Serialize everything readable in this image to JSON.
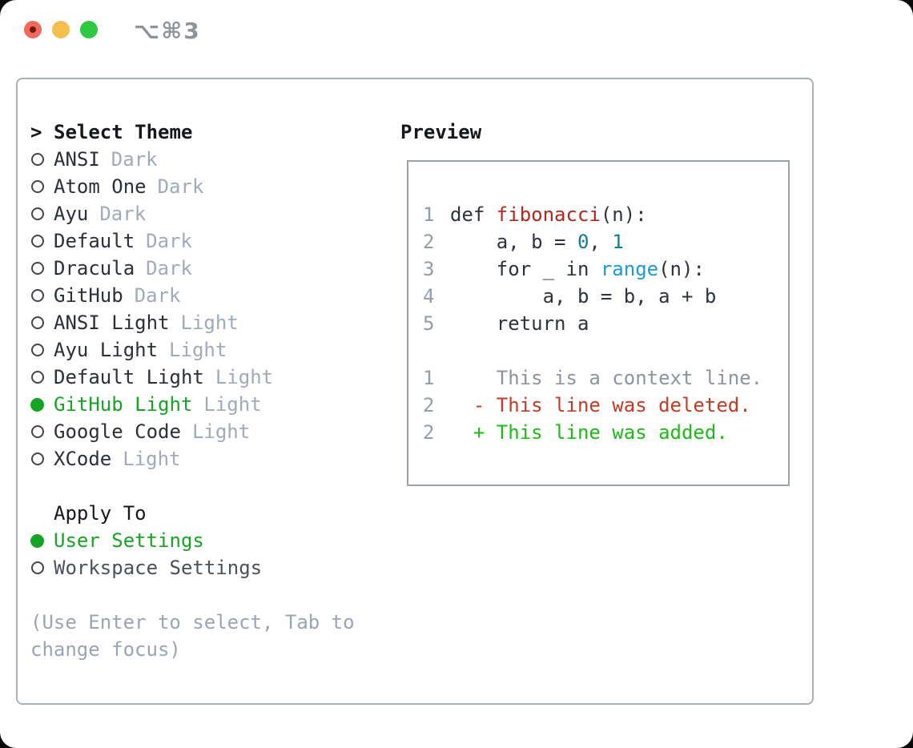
{
  "window": {
    "title": "⌥⌘3",
    "traffic_lights": [
      "close",
      "minimize",
      "zoom"
    ]
  },
  "theme_picker": {
    "heading_prefix": ">",
    "heading": "Select Theme",
    "items": [
      {
        "label": "ANSI",
        "variant": "Dark",
        "selected": false
      },
      {
        "label": "Atom One",
        "variant": "Dark",
        "selected": false
      },
      {
        "label": "Ayu",
        "variant": "Dark",
        "selected": false
      },
      {
        "label": "Default",
        "variant": "Dark",
        "selected": false
      },
      {
        "label": "Dracula",
        "variant": "Dark",
        "selected": false
      },
      {
        "label": "GitHub",
        "variant": "Dark",
        "selected": false
      },
      {
        "label": "ANSI Light",
        "variant": "Light",
        "selected": false
      },
      {
        "label": "Ayu Light",
        "variant": "Light",
        "selected": false
      },
      {
        "label": "Default Light",
        "variant": "Light",
        "selected": false
      },
      {
        "label": "GitHub Light",
        "variant": "Light",
        "selected": true
      },
      {
        "label": "Google Code",
        "variant": "Light",
        "selected": false
      },
      {
        "label": "XCode",
        "variant": "Light",
        "selected": false
      }
    ],
    "apply_to": {
      "heading": "Apply To",
      "options": [
        {
          "label": "User Settings",
          "selected": true
        },
        {
          "label": "Workspace Settings",
          "selected": false
        }
      ]
    },
    "hint_lines": [
      "(Use Enter to select, Tab to",
      "change focus)"
    ]
  },
  "preview": {
    "heading": "Preview",
    "code_lines": [
      {
        "num": "1",
        "segments": [
          {
            "t": "def ",
            "c": "code"
          },
          {
            "t": "fibonacci",
            "c": "funcdef"
          },
          {
            "t": "(n):",
            "c": "code"
          }
        ]
      },
      {
        "num": "2",
        "segments": [
          {
            "t": "    a, b = ",
            "c": "code"
          },
          {
            "t": "0",
            "c": "number"
          },
          {
            "t": ", ",
            "c": "code"
          },
          {
            "t": "1",
            "c": "number"
          }
        ]
      },
      {
        "num": "3",
        "segments": [
          {
            "t": "    for _ in ",
            "c": "code"
          },
          {
            "t": "range",
            "c": "call"
          },
          {
            "t": "(n):",
            "c": "code"
          }
        ]
      },
      {
        "num": "4",
        "segments": [
          {
            "t": "        a, b = b, a + b",
            "c": "code"
          }
        ]
      },
      {
        "num": "5",
        "segments": [
          {
            "t": "    return a",
            "c": "code"
          }
        ]
      },
      {
        "num": "",
        "segments": []
      },
      {
        "num": "1",
        "segments": [
          {
            "t": "    This is a context line.",
            "c": "ctx"
          }
        ]
      },
      {
        "num": "2",
        "segments": [
          {
            "t": "  - This line was deleted.",
            "c": "del"
          }
        ]
      },
      {
        "num": "2",
        "segments": [
          {
            "t": "  + This line was added.",
            "c": "add"
          }
        ]
      }
    ]
  },
  "colors": {
    "green": "#17a325",
    "add_green": "#1cbb17",
    "del_red": "#c43a24",
    "func_red": "#b3271d",
    "num_teal": "#0f7e8a",
    "call_blue": "#1b9ad2",
    "code_dark": "#2d333d",
    "context_gray": "#8d949e",
    "linenum": "#929dac",
    "heading": "#14171c",
    "item_dark": "#2a2f38",
    "suffix_gray": "#a0aab8",
    "hint_gray": "#9aa4b4",
    "workspace_gray": "#4b515b",
    "panel_border": "#a9b0ba",
    "box_border": "#9aa3ad",
    "ring": "#3f4650",
    "title_gray": "#8f949b",
    "traffic_red": "#ee6a5e",
    "traffic_red_dot": "#7b150e",
    "traffic_yellow": "#f5bf4e",
    "traffic_green": "#2ec940"
  }
}
